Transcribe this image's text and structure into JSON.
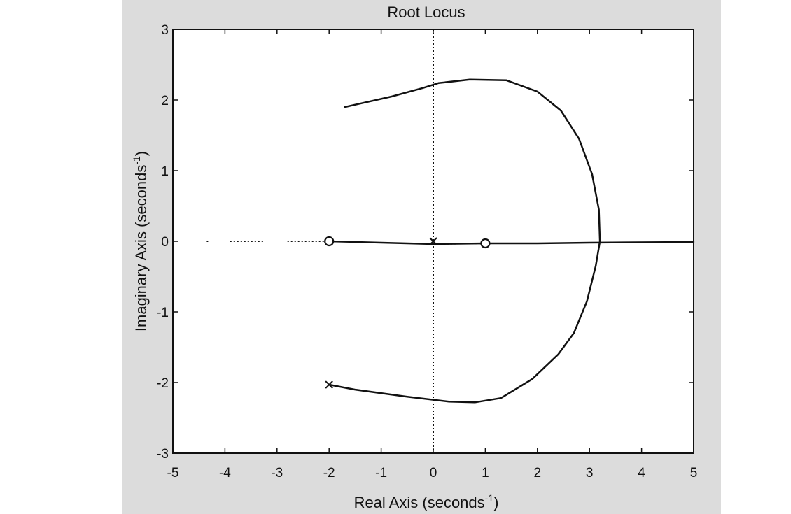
{
  "chart_data": {
    "type": "line",
    "title": "Root Locus",
    "xlabel": "Real Axis (seconds",
    "xlabel_superscript": "-1",
    "xlabel_suffix": ")",
    "ylabel": "Imaginary Axis (seconds",
    "ylabel_superscript": "-1",
    "ylabel_suffix": ")",
    "xlim": [
      -5,
      5
    ],
    "ylim": [
      -3,
      3
    ],
    "xticks": [
      "-5",
      "-4",
      "-3",
      "-2",
      "-1",
      "0",
      "1",
      "2",
      "3",
      "4",
      "5"
    ],
    "yticks": [
      "-3",
      "-2",
      "-1",
      "0",
      "1",
      "2",
      "3"
    ],
    "grid": false,
    "colors": {
      "line": "#111111",
      "plot_bg": "#ffffff",
      "figure_bg": "#dcdcdc"
    },
    "poles": [
      {
        "x": 0,
        "y": 0
      },
      {
        "x": -2,
        "y": -2.03
      }
    ],
    "zeros": [
      {
        "x": -2,
        "y": 0
      },
      {
        "x": 1,
        "y": -0.03
      }
    ],
    "series": [
      {
        "style": "solid",
        "points": [
          [
            -2,
            -2.03
          ],
          [
            -1.5,
            -2.1
          ],
          [
            -0.5,
            -2.2
          ],
          [
            0.3,
            -2.27
          ],
          [
            0.8,
            -2.28
          ],
          [
            1.3,
            -2.22
          ],
          [
            1.9,
            -1.95
          ],
          [
            2.4,
            -1.6
          ],
          [
            2.7,
            -1.3
          ],
          [
            2.95,
            -0.85
          ],
          [
            3.12,
            -0.35
          ],
          [
            3.2,
            0
          ],
          [
            3.18,
            0.45
          ],
          [
            3.05,
            0.95
          ],
          [
            2.8,
            1.45
          ],
          [
            2.45,
            1.85
          ],
          [
            2.0,
            2.12
          ],
          [
            1.4,
            2.28
          ],
          [
            0.7,
            2.29
          ],
          [
            0.1,
            2.24
          ],
          [
            -0.2,
            2.17
          ],
          [
            -0.8,
            2.05
          ],
          [
            -1.7,
            1.9
          ]
        ]
      },
      {
        "style": "solid",
        "points": [
          [
            -2,
            0
          ],
          [
            -1,
            -0.02
          ],
          [
            0,
            -0.04
          ],
          [
            1,
            -0.03
          ],
          [
            2,
            -0.03
          ],
          [
            3,
            -0.02
          ],
          [
            5,
            -0.01
          ]
        ]
      },
      {
        "style": "dotted",
        "points": [
          [
            0,
            -0.04
          ],
          [
            1,
            -0.03
          ]
        ]
      },
      {
        "style": "dotted",
        "points": [
          [
            0,
            3
          ],
          [
            0,
            -3
          ]
        ]
      },
      {
        "style": "dotted",
        "points": [
          [
            -2.8,
            0
          ],
          [
            -2,
            0
          ]
        ]
      },
      {
        "style": "dotted",
        "points": [
          [
            -3.9,
            0
          ],
          [
            -3.25,
            0
          ]
        ]
      },
      {
        "style": "dotted",
        "points": [
          [
            -4.35,
            0
          ],
          [
            -4.3,
            0
          ]
        ]
      }
    ]
  }
}
